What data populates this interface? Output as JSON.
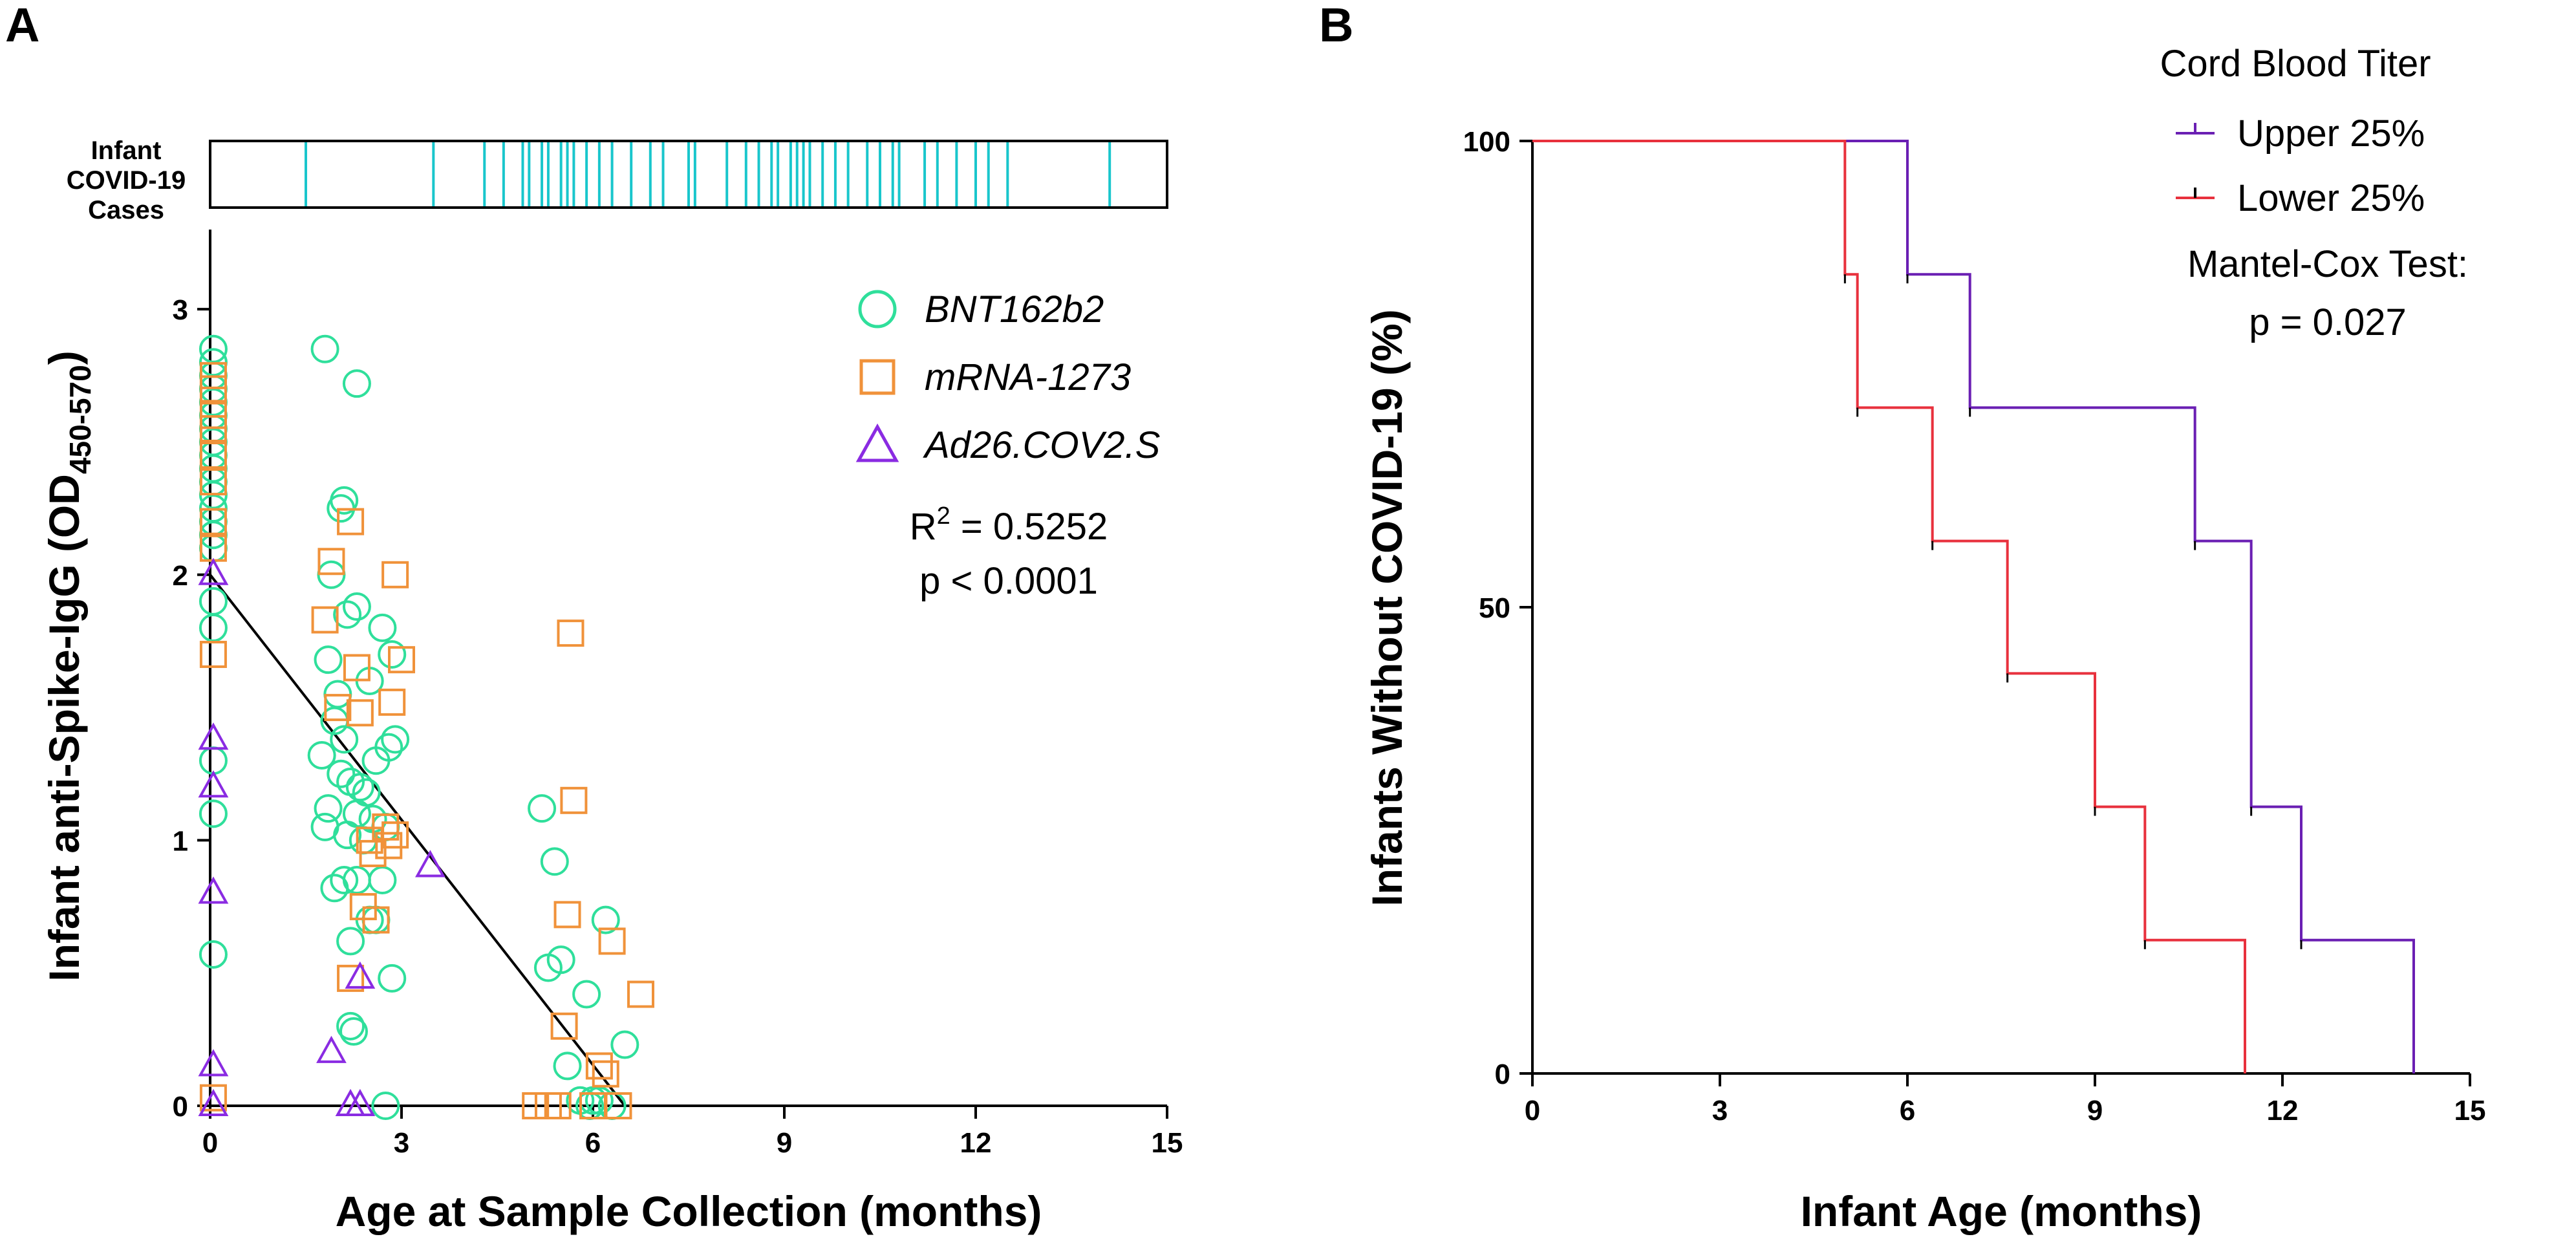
{
  "chart_data": [
    {
      "panel": "A",
      "type": "scatter",
      "title": "",
      "xlabel": "Age at Sample Collection (months)",
      "ylabel_main": "Infant anti-Spike-IgG (OD",
      "ylabel_sub": "450-570",
      "ylabel_close": ")",
      "xlim": [
        0,
        15
      ],
      "ylim": [
        0,
        3.3
      ],
      "xticks": [
        "0",
        "3",
        "6",
        "9",
        "12",
        "15"
      ],
      "xtick_values": [
        0,
        3,
        6,
        9,
        12,
        15
      ],
      "yticks": [
        "0",
        "1",
        "2",
        "3"
      ],
      "ytick_values": [
        0,
        1,
        2,
        3
      ],
      "colors": {
        "BNT162b2": "#2fdf9b",
        "mRNA-1273": "#f0923a",
        "Ad26.COV2.S": "#8a2be2",
        "cases": "#19c6cc",
        "fit": "#000000"
      },
      "series": [
        {
          "name": "BNT162b2",
          "marker": "circle",
          "points": [
            [
              0.05,
              2.85
            ],
            [
              0.05,
              2.8
            ],
            [
              0.05,
              2.75
            ],
            [
              0.05,
              2.7
            ],
            [
              0.05,
              2.65
            ],
            [
              0.05,
              2.6
            ],
            [
              0.05,
              2.55
            ],
            [
              0.05,
              2.5
            ],
            [
              0.05,
              2.45
            ],
            [
              0.05,
              2.4
            ],
            [
              0.05,
              2.35
            ],
            [
              0.05,
              2.3
            ],
            [
              0.05,
              2.25
            ],
            [
              0.05,
              2.2
            ],
            [
              0.05,
              2.15
            ],
            [
              0.05,
              2.1
            ],
            [
              0.05,
              1.9
            ],
            [
              0.05,
              1.8
            ],
            [
              0.05,
              1.3
            ],
            [
              0.05,
              1.1
            ],
            [
              0.05,
              0.57
            ],
            [
              1.8,
              2.85
            ],
            [
              2.3,
              2.72
            ],
            [
              2.1,
              2.28
            ],
            [
              2.05,
              2.25
            ],
            [
              1.9,
              2.0
            ],
            [
              2.3,
              1.88
            ],
            [
              2.15,
              1.85
            ],
            [
              2.7,
              1.8
            ],
            [
              2.85,
              1.7
            ],
            [
              1.85,
              1.68
            ],
            [
              2.5,
              1.6
            ],
            [
              2.0,
              1.55
            ],
            [
              1.95,
              1.45
            ],
            [
              2.1,
              1.38
            ],
            [
              2.9,
              1.38
            ],
            [
              1.75,
              1.32
            ],
            [
              2.8,
              1.35
            ],
            [
              2.6,
              1.3
            ],
            [
              2.05,
              1.25
            ],
            [
              2.2,
              1.22
            ],
            [
              2.35,
              1.2
            ],
            [
              2.45,
              1.18
            ],
            [
              1.85,
              1.12
            ],
            [
              2.3,
              1.1
            ],
            [
              2.55,
              1.08
            ],
            [
              1.8,
              1.05
            ],
            [
              2.75,
              1.05
            ],
            [
              2.15,
              1.02
            ],
            [
              2.4,
              1.0
            ],
            [
              2.1,
              0.85
            ],
            [
              1.95,
              0.82
            ],
            [
              2.3,
              0.85
            ],
            [
              2.7,
              0.85
            ],
            [
              2.5,
              0.7
            ],
            [
              2.6,
              0.7
            ],
            [
              2.2,
              0.62
            ],
            [
              2.85,
              0.48
            ],
            [
              2.2,
              0.3
            ],
            [
              2.25,
              0.28
            ],
            [
              2.75,
              0.0
            ],
            [
              5.2,
              1.12
            ],
            [
              5.4,
              0.92
            ],
            [
              5.3,
              0.52
            ],
            [
              5.5,
              0.55
            ],
            [
              5.9,
              0.42
            ],
            [
              5.6,
              0.15
            ],
            [
              6.2,
              0.7
            ],
            [
              6.5,
              0.23
            ],
            [
              5.8,
              0.02
            ],
            [
              6.0,
              0.02
            ],
            [
              6.1,
              0.02
            ],
            [
              5.95,
              0.0
            ],
            [
              6.3,
              0.0
            ]
          ]
        },
        {
          "name": "mRNA-1273",
          "marker": "square",
          "points": [
            [
              0.05,
              2.75
            ],
            [
              0.05,
              2.7
            ],
            [
              0.05,
              2.6
            ],
            [
              0.05,
              2.55
            ],
            [
              0.05,
              2.45
            ],
            [
              0.05,
              2.35
            ],
            [
              0.05,
              2.2
            ],
            [
              0.05,
              2.1
            ],
            [
              0.05,
              1.7
            ],
            [
              0.05,
              0.03
            ],
            [
              2.2,
              2.2
            ],
            [
              1.9,
              2.05
            ],
            [
              2.9,
              2.0
            ],
            [
              1.8,
              1.83
            ],
            [
              3.0,
              1.68
            ],
            [
              2.3,
              1.65
            ],
            [
              2.85,
              1.52
            ],
            [
              2.0,
              1.5
            ],
            [
              2.35,
              1.48
            ],
            [
              2.75,
              1.05
            ],
            [
              2.5,
              1.0
            ],
            [
              2.9,
              1.02
            ],
            [
              2.8,
              0.98
            ],
            [
              2.55,
              0.95
            ],
            [
              2.4,
              0.75
            ],
            [
              2.6,
              0.7
            ],
            [
              2.2,
              0.48
            ],
            [
              5.65,
              1.78
            ],
            [
              5.7,
              1.15
            ],
            [
              5.6,
              0.72
            ],
            [
              6.3,
              0.62
            ],
            [
              6.75,
              0.42
            ],
            [
              5.55,
              0.3
            ],
            [
              6.1,
              0.15
            ],
            [
              6.2,
              0.12
            ],
            [
              5.1,
              0.0
            ],
            [
              5.3,
              0.0
            ],
            [
              5.45,
              0.0
            ],
            [
              6.0,
              0.0
            ],
            [
              6.4,
              0.0
            ]
          ]
        },
        {
          "name": "Ad26.COV2.S",
          "marker": "triangle",
          "points": [
            [
              0.05,
              2.0
            ],
            [
              0.05,
              1.38
            ],
            [
              0.05,
              1.2
            ],
            [
              0.05,
              0.8
            ],
            [
              0.05,
              0.15
            ],
            [
              0.05,
              0.0
            ],
            [
              3.45,
              0.9
            ],
            [
              2.35,
              0.48
            ],
            [
              1.9,
              0.2
            ],
            [
              2.2,
              0.0
            ],
            [
              2.35,
              0.0
            ]
          ]
        }
      ],
      "fit_line": {
        "x0": 0,
        "y0": 2.0,
        "x1": 6.5,
        "y1": 0.0
      },
      "case_strip_label": [
        "Infant",
        "COVID-19",
        "Cases"
      ],
      "case_times": [
        1.5,
        3.5,
        4.3,
        4.6,
        4.9,
        5.0,
        5.2,
        5.3,
        5.5,
        5.6,
        5.7,
        5.9,
        6.1,
        6.3,
        6.6,
        6.9,
        7.1,
        7.5,
        7.6,
        8.1,
        8.4,
        8.6,
        8.8,
        8.9,
        9.1,
        9.2,
        9.3,
        9.4,
        9.6,
        9.8,
        10.0,
        10.3,
        10.5,
        10.7,
        10.8,
        11.2,
        11.4,
        11.7,
        12.0,
        12.2,
        12.5,
        14.1
      ],
      "legend": [
        "BNT162b2",
        "mRNA-1273",
        "Ad26.COV2.S"
      ],
      "annotations": {
        "r2_prefix": "R",
        "r2_sup": "2",
        "r2_rest": " = 0.5252",
        "p": "p < 0.0001"
      }
    },
    {
      "panel": "B",
      "type": "line",
      "subtype": "kaplan-meier",
      "title": "",
      "xlabel": "Infant Age (months)",
      "ylabel": "Infants Without COVID-19 (%)",
      "xlim": [
        0,
        15
      ],
      "ylim": [
        0,
        100
      ],
      "xticks": [
        "0",
        "3",
        "6",
        "9",
        "12",
        "15"
      ],
      "xtick_values": [
        0,
        3,
        6,
        9,
        12,
        15
      ],
      "yticks": [
        "0",
        "50",
        "100"
      ],
      "ytick_values": [
        0,
        50,
        100
      ],
      "colors": {
        "Upper 25%": "#6a1fb3",
        "Lower 25%": "#e8313d"
      },
      "series": [
        {
          "name": "Upper 25%",
          "x": [
            0,
            6.0,
            7.0,
            10.6,
            11.5,
            12.3,
            14.1
          ],
          "y": [
            100,
            85.7,
            71.4,
            57.1,
            28.6,
            14.3,
            0
          ]
        },
        {
          "name": "Lower 25%",
          "x": [
            0,
            5.0,
            5.2,
            6.4,
            7.6,
            9.0,
            9.8,
            11.4
          ],
          "y": [
            100,
            85.7,
            71.4,
            57.1,
            42.9,
            28.6,
            14.3,
            0
          ]
        }
      ],
      "legend_title": "Cord Blood Titer",
      "legend": [
        "Upper 25%",
        "Lower 25%"
      ],
      "annotations": {
        "test": "Mantel-Cox Test:",
        "p": "p = 0.027"
      }
    }
  ]
}
